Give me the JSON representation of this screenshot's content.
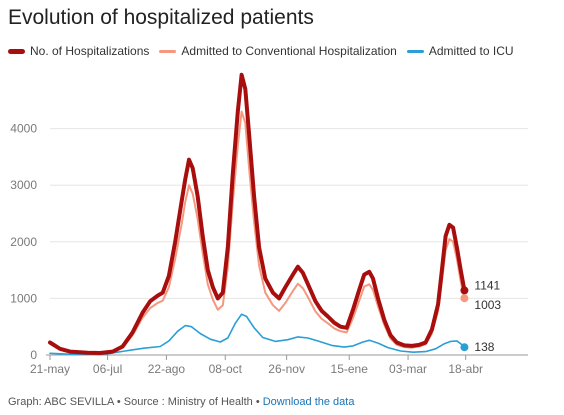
{
  "title": "Evolution of hospitalized patients",
  "footer": {
    "credit": "Graph: ABC SEVILLA",
    "source": "Source : Ministry of Health",
    "download": "Download the data",
    "sep": " • "
  },
  "chart_data": {
    "type": "line",
    "title": "Evolution of hospitalized patients",
    "xlabel": "",
    "ylabel": "",
    "ylim": [
      0,
      5000
    ],
    "y_ticks": [
      "0",
      "1000",
      "2000",
      "3000",
      "4000"
    ],
    "x_tick_labels": [
      "21-may",
      "06-jul",
      "22-ago",
      "08-oct",
      "26-nov",
      "15-ene",
      "03-mar",
      "18-abr"
    ],
    "x_tick_index": [
      0,
      46,
      93,
      140,
      189,
      239,
      286,
      332
    ],
    "x_count": 377,
    "grid": true,
    "legend_position": "top-left",
    "series": [
      {
        "name": "No. of Hospitalizations",
        "color": "#a80e0e",
        "end_label": "1141",
        "points": [
          [
            0,
            220
          ],
          [
            8,
            110
          ],
          [
            16,
            60
          ],
          [
            30,
            40
          ],
          [
            40,
            35
          ],
          [
            50,
            60
          ],
          [
            58,
            150
          ],
          [
            66,
            400
          ],
          [
            74,
            750
          ],
          [
            80,
            950
          ],
          [
            86,
            1050
          ],
          [
            90,
            1100
          ],
          [
            95,
            1400
          ],
          [
            100,
            2000
          ],
          [
            105,
            2700
          ],
          [
            108,
            3100
          ],
          [
            111,
            3450
          ],
          [
            114,
            3300
          ],
          [
            118,
            2800
          ],
          [
            122,
            2100
          ],
          [
            126,
            1500
          ],
          [
            130,
            1200
          ],
          [
            134,
            1000
          ],
          [
            138,
            1100
          ],
          [
            142,
            1900
          ],
          [
            146,
            3200
          ],
          [
            150,
            4300
          ],
          [
            153,
            4950
          ],
          [
            156,
            4700
          ],
          [
            159,
            3900
          ],
          [
            163,
            2800
          ],
          [
            167,
            1900
          ],
          [
            172,
            1350
          ],
          [
            178,
            1100
          ],
          [
            183,
            1000
          ],
          [
            188,
            1200
          ],
          [
            194,
            1420
          ],
          [
            198,
            1560
          ],
          [
            202,
            1450
          ],
          [
            207,
            1200
          ],
          [
            212,
            950
          ],
          [
            217,
            780
          ],
          [
            222,
            680
          ],
          [
            227,
            570
          ],
          [
            232,
            500
          ],
          [
            237,
            480
          ],
          [
            242,
            800
          ],
          [
            247,
            1150
          ],
          [
            251,
            1420
          ],
          [
            255,
            1470
          ],
          [
            258,
            1350
          ],
          [
            262,
            1000
          ],
          [
            267,
            620
          ],
          [
            272,
            350
          ],
          [
            277,
            220
          ],
          [
            283,
            170
          ],
          [
            289,
            160
          ],
          [
            295,
            180
          ],
          [
            300,
            220
          ],
          [
            305,
            450
          ],
          [
            310,
            900
          ],
          [
            313,
            1500
          ],
          [
            316,
            2100
          ],
          [
            319,
            2300
          ],
          [
            322,
            2250
          ],
          [
            325,
            1900
          ],
          [
            328,
            1500
          ],
          [
            331,
            1141
          ]
        ]
      },
      {
        "name": "Admitted to Conventional Hospitalization",
        "color": "#f5987d",
        "end_label": "1003",
        "points": [
          [
            0,
            200
          ],
          [
            8,
            100
          ],
          [
            16,
            55
          ],
          [
            30,
            35
          ],
          [
            40,
            30
          ],
          [
            50,
            50
          ],
          [
            58,
            130
          ],
          [
            66,
            350
          ],
          [
            74,
            660
          ],
          [
            80,
            830
          ],
          [
            86,
            920
          ],
          [
            90,
            960
          ],
          [
            95,
            1200
          ],
          [
            100,
            1700
          ],
          [
            105,
            2300
          ],
          [
            108,
            2700
          ],
          [
            111,
            3000
          ],
          [
            114,
            2850
          ],
          [
            118,
            2400
          ],
          [
            122,
            1800
          ],
          [
            126,
            1250
          ],
          [
            130,
            980
          ],
          [
            134,
            800
          ],
          [
            138,
            880
          ],
          [
            142,
            1550
          ],
          [
            146,
            2700
          ],
          [
            150,
            3700
          ],
          [
            153,
            4300
          ],
          [
            156,
            4100
          ],
          [
            159,
            3300
          ],
          [
            163,
            2350
          ],
          [
            167,
            1580
          ],
          [
            172,
            1100
          ],
          [
            178,
            880
          ],
          [
            183,
            780
          ],
          [
            188,
            920
          ],
          [
            194,
            1130
          ],
          [
            198,
            1260
          ],
          [
            202,
            1180
          ],
          [
            207,
            980
          ],
          [
            212,
            770
          ],
          [
            217,
            640
          ],
          [
            222,
            560
          ],
          [
            227,
            470
          ],
          [
            232,
            420
          ],
          [
            237,
            400
          ],
          [
            242,
            650
          ],
          [
            247,
            960
          ],
          [
            251,
            1210
          ],
          [
            255,
            1250
          ],
          [
            258,
            1150
          ],
          [
            262,
            860
          ],
          [
            267,
            530
          ],
          [
            272,
            290
          ],
          [
            277,
            180
          ],
          [
            283,
            140
          ],
          [
            289,
            130
          ],
          [
            295,
            150
          ],
          [
            300,
            190
          ],
          [
            305,
            380
          ],
          [
            310,
            780
          ],
          [
            313,
            1300
          ],
          [
            316,
            1850
          ],
          [
            319,
            2050
          ],
          [
            322,
            2000
          ],
          [
            325,
            1700
          ],
          [
            328,
            1300
          ],
          [
            331,
            1003
          ]
        ]
      },
      {
        "name": "Admitted to ICU",
        "color": "#2a9fd6",
        "end_label": "138",
        "points": [
          [
            0,
            30
          ],
          [
            20,
            10
          ],
          [
            45,
            20
          ],
          [
            60,
            70
          ],
          [
            75,
            120
          ],
          [
            88,
            150
          ],
          [
            95,
            250
          ],
          [
            102,
            420
          ],
          [
            108,
            520
          ],
          [
            113,
            500
          ],
          [
            120,
            380
          ],
          [
            128,
            280
          ],
          [
            136,
            230
          ],
          [
            142,
            300
          ],
          [
            148,
            560
          ],
          [
            153,
            720
          ],
          [
            157,
            680
          ],
          [
            163,
            480
          ],
          [
            170,
            310
          ],
          [
            180,
            240
          ],
          [
            190,
            270
          ],
          [
            198,
            320
          ],
          [
            206,
            300
          ],
          [
            215,
            240
          ],
          [
            225,
            170
          ],
          [
            235,
            140
          ],
          [
            242,
            160
          ],
          [
            250,
            230
          ],
          [
            255,
            260
          ],
          [
            262,
            210
          ],
          [
            270,
            130
          ],
          [
            280,
            70
          ],
          [
            290,
            50
          ],
          [
            300,
            60
          ],
          [
            308,
            110
          ],
          [
            315,
            200
          ],
          [
            320,
            240
          ],
          [
            325,
            250
          ],
          [
            328,
            200
          ],
          [
            331,
            138
          ]
        ]
      }
    ]
  }
}
